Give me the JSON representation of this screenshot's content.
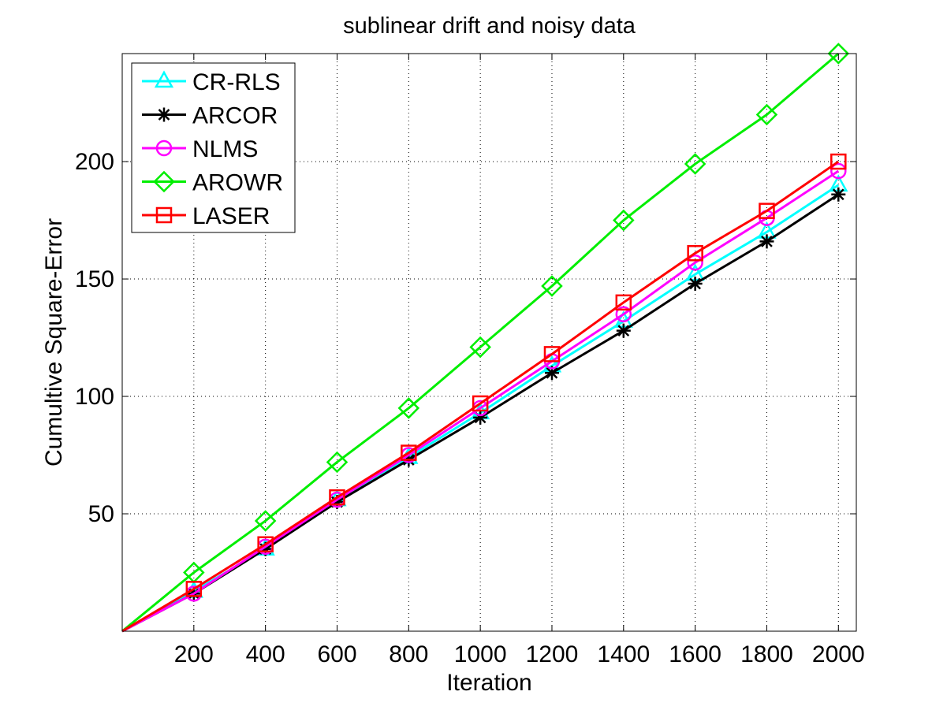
{
  "chart_data": {
    "type": "line",
    "title": "sublinear drift and noisy data",
    "xlabel": "Iteration",
    "ylabel": "Cumultive Square-Error",
    "xlim": [
      0,
      2050
    ],
    "ylim": [
      0,
      246
    ],
    "xticks": [
      200,
      400,
      600,
      800,
      1000,
      1200,
      1400,
      1600,
      1800,
      2000
    ],
    "yticks": [
      50,
      100,
      150,
      200
    ],
    "grid": true,
    "legend_position": "top-left",
    "x": [
      0,
      200,
      400,
      600,
      800,
      1000,
      1200,
      1400,
      1600,
      1800,
      2000
    ],
    "series": [
      {
        "name": "CR-RLS",
        "color": "#00ffff",
        "marker": "triangle",
        "values": [
          0,
          17,
          35,
          56,
          74,
          93,
          113,
          132,
          152,
          170,
          190
        ]
      },
      {
        "name": "ARCOR",
        "color": "#000000",
        "marker": "asterisk",
        "values": [
          0,
          16,
          35,
          55,
          73,
          91,
          110,
          128,
          148,
          166,
          186
        ]
      },
      {
        "name": "NLMS",
        "color": "#ff00ff",
        "marker": "circle",
        "values": [
          0,
          16,
          36,
          56,
          75,
          95,
          115,
          135,
          157,
          176,
          196
        ]
      },
      {
        "name": "AROWR",
        "color": "#00ee00",
        "marker": "diamond",
        "values": [
          0,
          25,
          47,
          72,
          95,
          121,
          147,
          175,
          199,
          220,
          246
        ]
      },
      {
        "name": "LASER",
        "color": "#ff0000",
        "marker": "square",
        "values": [
          0,
          18,
          37,
          57,
          76,
          97,
          118,
          140,
          161,
          179,
          200
        ]
      }
    ]
  }
}
